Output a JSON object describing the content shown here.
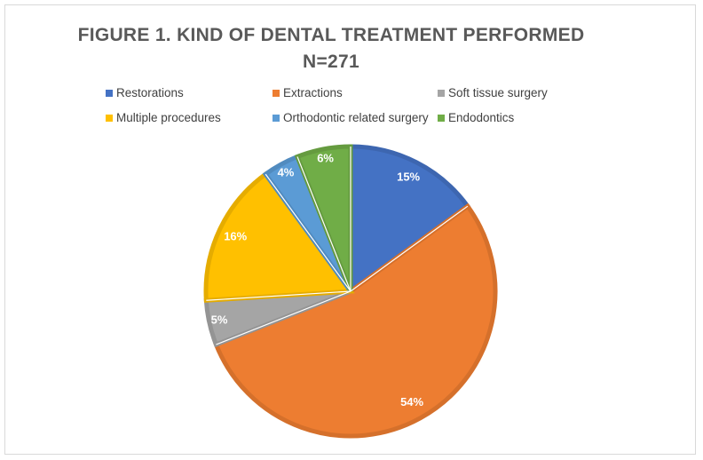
{
  "chart_data": {
    "type": "pie",
    "title": "FIGURE 1. KIND OF DENTAL TREATMENT PERFORMED",
    "subtitle": "N=271",
    "legend_position": "top",
    "slices": [
      {
        "name": "Restorations",
        "value": 15,
        "label": "15%",
        "color": "#4472c4",
        "border": "#3d66b0"
      },
      {
        "name": "Extractions",
        "value": 54,
        "label": "54%",
        "color": "#ed7d31",
        "border": "#d5702b"
      },
      {
        "name": "Soft tissue surgery",
        "value": 5,
        "label": "5%",
        "color": "#a5a5a5",
        "border": "#949494"
      },
      {
        "name": "Multiple procedures",
        "value": 16,
        "label": "16%",
        "color": "#ffc000",
        "border": "#e5ac00"
      },
      {
        "name": "Orthodontic related surgery",
        "value": 4,
        "label": "4%",
        "color": "#5b9bd5",
        "border": "#518bbf"
      },
      {
        "name": "Endodontics",
        "value": 6,
        "label": "6%",
        "color": "#70ad47",
        "border": "#659b3f"
      }
    ]
  }
}
